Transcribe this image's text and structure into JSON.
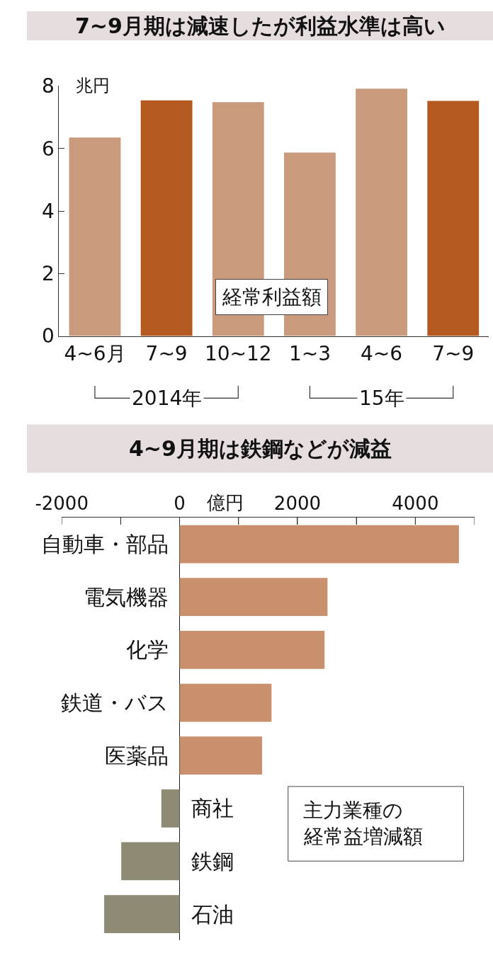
{
  "chart_data": [
    {
      "type": "bar",
      "title": "7~9月期は減速したが利益水準は高い",
      "ylabel": "兆円",
      "categories": [
        "4~6月",
        "7~9",
        "10~12",
        "1~3",
        "4~6",
        "7~9"
      ],
      "values": [
        6.35,
        7.54,
        7.48,
        5.87,
        7.91,
        7.52
      ],
      "colors": [
        "#c99a7c",
        "#b4591f",
        "#c99a7c",
        "#c99a7c",
        "#c99a7c",
        "#b4591f"
      ],
      "ylim": [
        0,
        8
      ],
      "yticks": [
        0,
        2,
        4,
        6,
        8
      ],
      "annotations": [
        "経常利益額",
        "2014年",
        "15年"
      ]
    },
    {
      "type": "bar",
      "orientation": "horizontal",
      "title": "4~9月期は鉄鋼などが減益",
      "xlabel": "億円",
      "categories": [
        "自動車・部品",
        "電気機器",
        "化学",
        "鉄道・バス",
        "医薬品",
        "商社",
        "鉄鋼",
        "石油"
      ],
      "values": [
        4740,
        2510,
        2460,
        1560,
        1400,
        -310,
        -990,
        -1280
      ],
      "colors": [
        "#c8906c",
        "#c8906c",
        "#c8906c",
        "#c8906c",
        "#c8906c",
        "#8e8a74",
        "#8e8a74",
        "#8e8a74"
      ],
      "xlim": [
        -2000,
        5000
      ],
      "xticks": [
        -2000,
        {
          "value": -1000,
          "label": null
        },
        0,
        {
          "value": 1000,
          "label": null
        },
        2000,
        {
          "value": 3000,
          "label": null
        },
        4000,
        {
          "value": 5000,
          "label": null
        }
      ],
      "annotations": [
        "主力業種の",
        "経常益増減額"
      ]
    }
  ]
}
